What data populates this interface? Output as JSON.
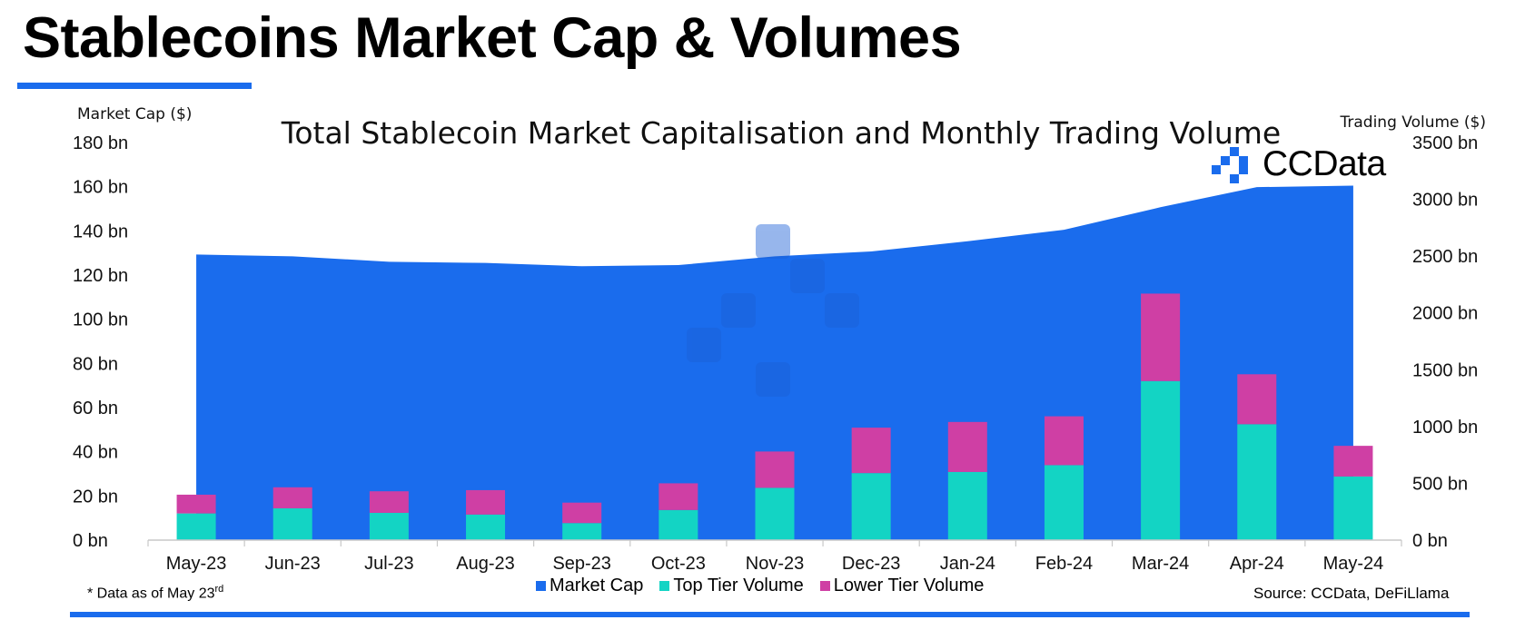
{
  "header": {
    "title": "Stablecoins Market Cap & Volumes"
  },
  "brand": {
    "name": "CCData",
    "logo_icon": "ccdata-logo-icon"
  },
  "footer": {
    "footnote_text": "* Data as of May 23",
    "footnote_sup": "rd",
    "source": "Source: CCData, DeFiLlama"
  },
  "colors": {
    "accent": "#1a6ced",
    "market_cap": "#1a6ced",
    "top_tier": "#13d4c4",
    "lower_tier": "#cf3fa4"
  },
  "chart_data": {
    "type": "area",
    "title": "Total Stablecoin Market Capitalisation and Monthly Trading Volume",
    "categories": [
      "May-23",
      "Jun-23",
      "Jul-23",
      "Aug-23",
      "Sep-23",
      "Oct-23",
      "Nov-23",
      "Dec-23",
      "Jan-24",
      "Feb-24",
      "Mar-24",
      "Apr-24",
      "May-24"
    ],
    "y_left": {
      "label": "Market Cap ($)",
      "ticks": [
        "0 bn",
        "20 bn",
        "40 bn",
        "60 bn",
        "80 bn",
        "100 bn",
        "120 bn",
        "140 bn",
        "160 bn",
        "180 bn"
      ],
      "range": [
        0,
        180
      ]
    },
    "y_right": {
      "label": "Trading Volume ($)",
      "ticks": [
        "0 bn",
        "500 bn",
        "1000 bn",
        "1500 bn",
        "2000 bn",
        "2500 bn",
        "3000 bn",
        "3500 bn"
      ],
      "range": [
        0,
        3500
      ]
    },
    "series": [
      {
        "name": "Market Cap",
        "type": "area",
        "axis": "left",
        "values": [
          129.3,
          128.5,
          126.0,
          125.5,
          124.0,
          124.5,
          128.5,
          130.7,
          135.3,
          140.5,
          150.7,
          159.8,
          160.5
        ]
      },
      {
        "name": "Top Tier Volume",
        "type": "stacked-bar",
        "axis": "right",
        "values": [
          235,
          280,
          240,
          225,
          150,
          265,
          460,
          590,
          600,
          660,
          1400,
          1020,
          560
        ]
      },
      {
        "name": "Lower Tier Volume",
        "type": "stacked-bar",
        "axis": "right",
        "values": [
          165,
          185,
          190,
          215,
          180,
          235,
          320,
          400,
          440,
          430,
          770,
          440,
          270
        ]
      }
    ],
    "legend_position": "bottom",
    "grid": false
  }
}
